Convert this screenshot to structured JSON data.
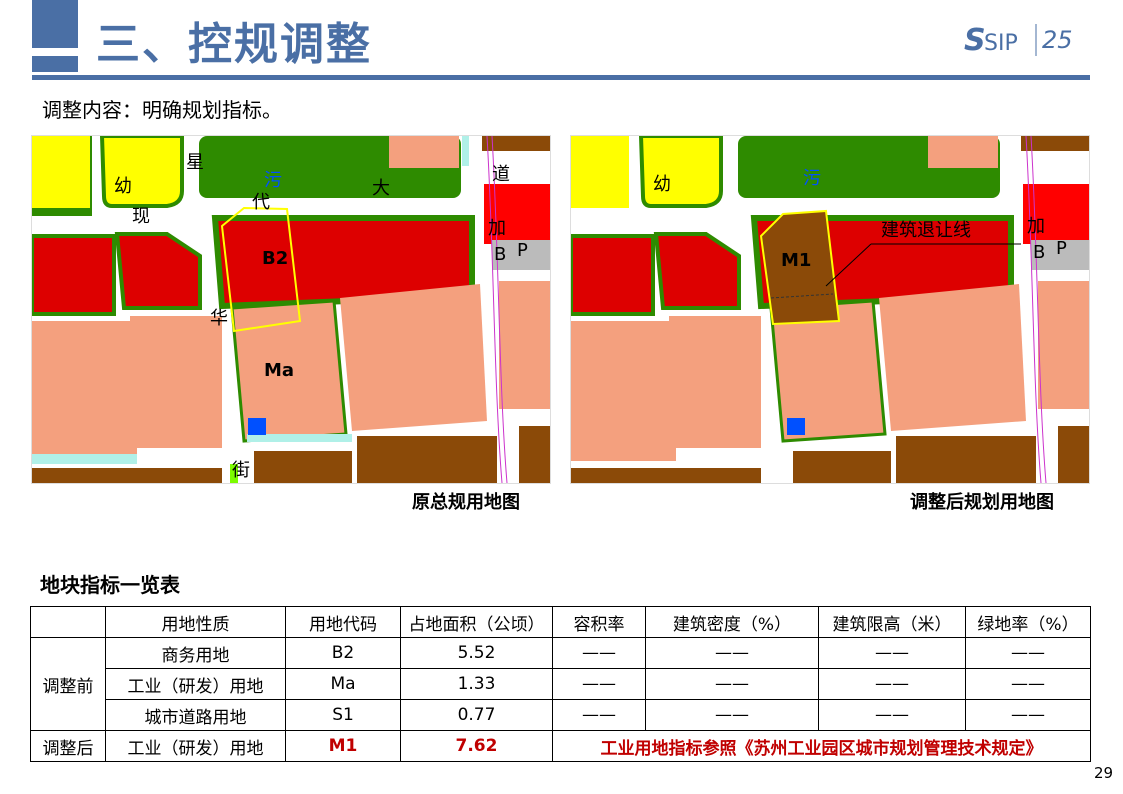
{
  "header": {
    "title": "三、控规调整",
    "subtitle": "调整内容：明确规划指标。",
    "logo_text": "SIP",
    "logo_badge": "25"
  },
  "maps": {
    "left": {
      "caption": "原总规用地图",
      "labels": {
        "b2": "B2",
        "ma": "Ma",
        "you": "幼",
        "wu": "污",
        "xing": "星",
        "xian": "现",
        "dai": "代",
        "da": "大",
        "dao": "道",
        "jia": "加",
        "hua": "华",
        "jie": "街",
        "b": "B",
        "p": "P"
      }
    },
    "right": {
      "caption": "调整后规划用地图",
      "labels": {
        "m1": "M1",
        "setback": "建筑退让线",
        "you": "幼",
        "wu": "污",
        "jia": "加",
        "b": "B",
        "p": "P"
      }
    }
  },
  "colors": {
    "commercial": "#dd0000",
    "industrial": "#f4a07e",
    "green": "#2e8b00",
    "yellow": "#ffff00",
    "brown": "#8b4a08",
    "m1": "#8b4a08",
    "accent": "#4a6fa5",
    "highlight": "#c00000"
  },
  "table": {
    "title": "地块指标一览表",
    "headers": [
      "用地性质",
      "用地代码",
      "占地面积（公顷）",
      "容积率",
      "建筑密度（%）",
      "建筑限高（米）",
      "绿地率（%）"
    ],
    "before_label": "调整前",
    "before_rows": [
      [
        "商务用地",
        "B2",
        "5.52",
        "——",
        "——",
        "——",
        "——"
      ],
      [
        "工业（研发）用地",
        "Ma",
        "1.33",
        "——",
        "——",
        "——",
        "——"
      ],
      [
        "城市道路用地",
        "S1",
        "0.77",
        "——",
        "——",
        "——",
        "——"
      ]
    ],
    "after_label": "调整后",
    "after_row": {
      "use": "工业（研发）用地",
      "code": "M1",
      "area": "7.62",
      "note": "工业用地指标参照《苏州工业园区城市规划管理技术规定》"
    }
  },
  "page_number": "29"
}
